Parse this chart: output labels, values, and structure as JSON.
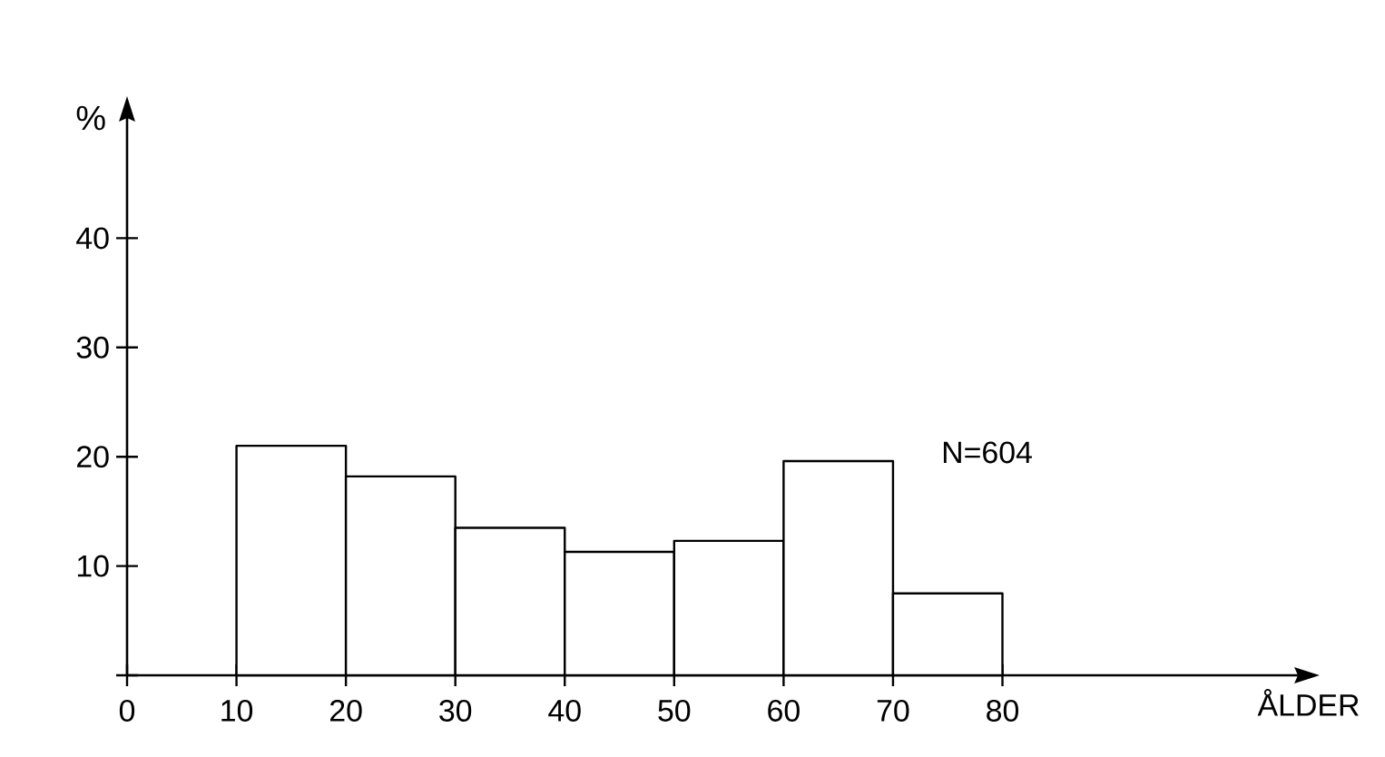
{
  "chart_data": {
    "type": "histogram",
    "xlabel": "ÅLDER",
    "ylabel": "%",
    "bins": [
      10,
      20,
      30,
      40,
      50,
      60,
      70,
      80
    ],
    "values": [
      21,
      18.2,
      13.5,
      11.3,
      12.3,
      19.6,
      7.5
    ],
    "color": "#ffffff",
    "xlim": [
      0,
      107
    ],
    "ylim": [
      0,
      51
    ],
    "xticks": [
      0,
      10,
      20,
      30,
      40,
      50,
      60,
      70,
      80
    ],
    "yticks": [
      {
        "value": 0,
        "label": null
      },
      10,
      20,
      30,
      40
    ],
    "annotations": [
      "N=604"
    ],
    "grid": false
  }
}
